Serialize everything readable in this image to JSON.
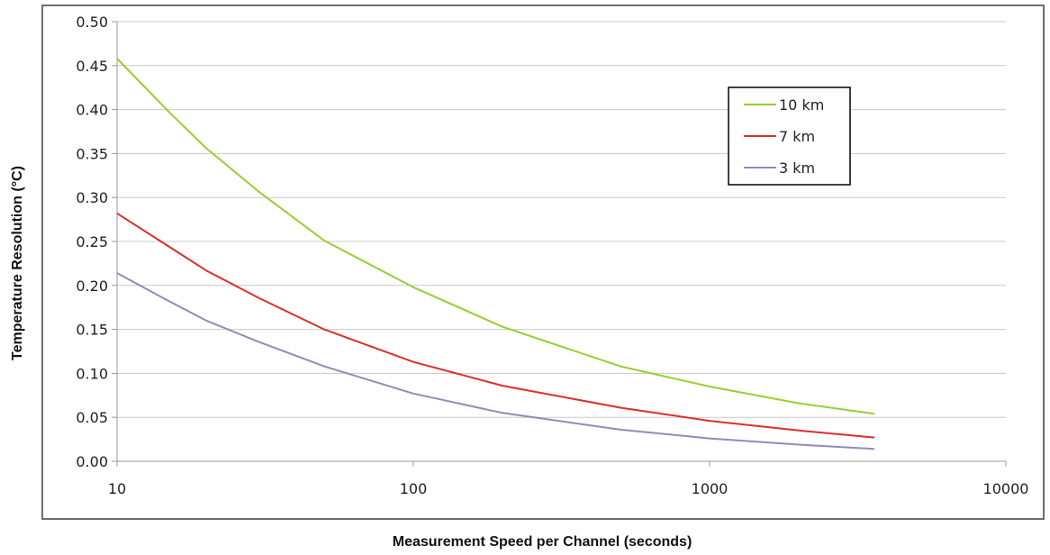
{
  "chart_data": {
    "type": "line",
    "title": "",
    "xlabel": "Measurement Speed per Channel (seconds)",
    "ylabel": "Temperature Resolution (°C)",
    "x_scale": "log",
    "xlim": [
      10,
      10000
    ],
    "ylim": [
      0,
      0.5
    ],
    "x_ticks": [
      10,
      100,
      1000,
      10000
    ],
    "x_tick_labels": [
      "10",
      "100",
      "1000",
      "10000"
    ],
    "y_ticks": [
      0,
      0.05,
      0.1,
      0.15,
      0.2,
      0.25,
      0.3,
      0.35,
      0.4,
      0.45,
      0.5
    ],
    "y_tick_labels": [
      "0.00",
      "0.05",
      "0.10",
      "0.15",
      "0.20",
      "0.25",
      "0.30",
      "0.35",
      "0.40",
      "0.45",
      "0.50"
    ],
    "grid": true,
    "legend_position": "top-right",
    "x": [
      10,
      15,
      20,
      30,
      50,
      100,
      200,
      500,
      1000,
      2000,
      3600
    ],
    "series": [
      {
        "name": "10 km",
        "color": "#9acd32",
        "values": [
          0.458,
          0.397,
          0.356,
          0.307,
          0.251,
          0.198,
          0.153,
          0.108,
          0.085,
          0.066,
          0.054
        ]
      },
      {
        "name": "7 km",
        "color": "#d9302a",
        "values": [
          0.282,
          0.244,
          0.217,
          0.186,
          0.15,
          0.113,
          0.086,
          0.061,
          0.046,
          0.035,
          0.027
        ]
      },
      {
        "name": "3 km",
        "color": "#8d8db8",
        "values": [
          0.214,
          0.182,
          0.16,
          0.136,
          0.108,
          0.077,
          0.055,
          0.036,
          0.026,
          0.019,
          0.014
        ]
      }
    ]
  }
}
